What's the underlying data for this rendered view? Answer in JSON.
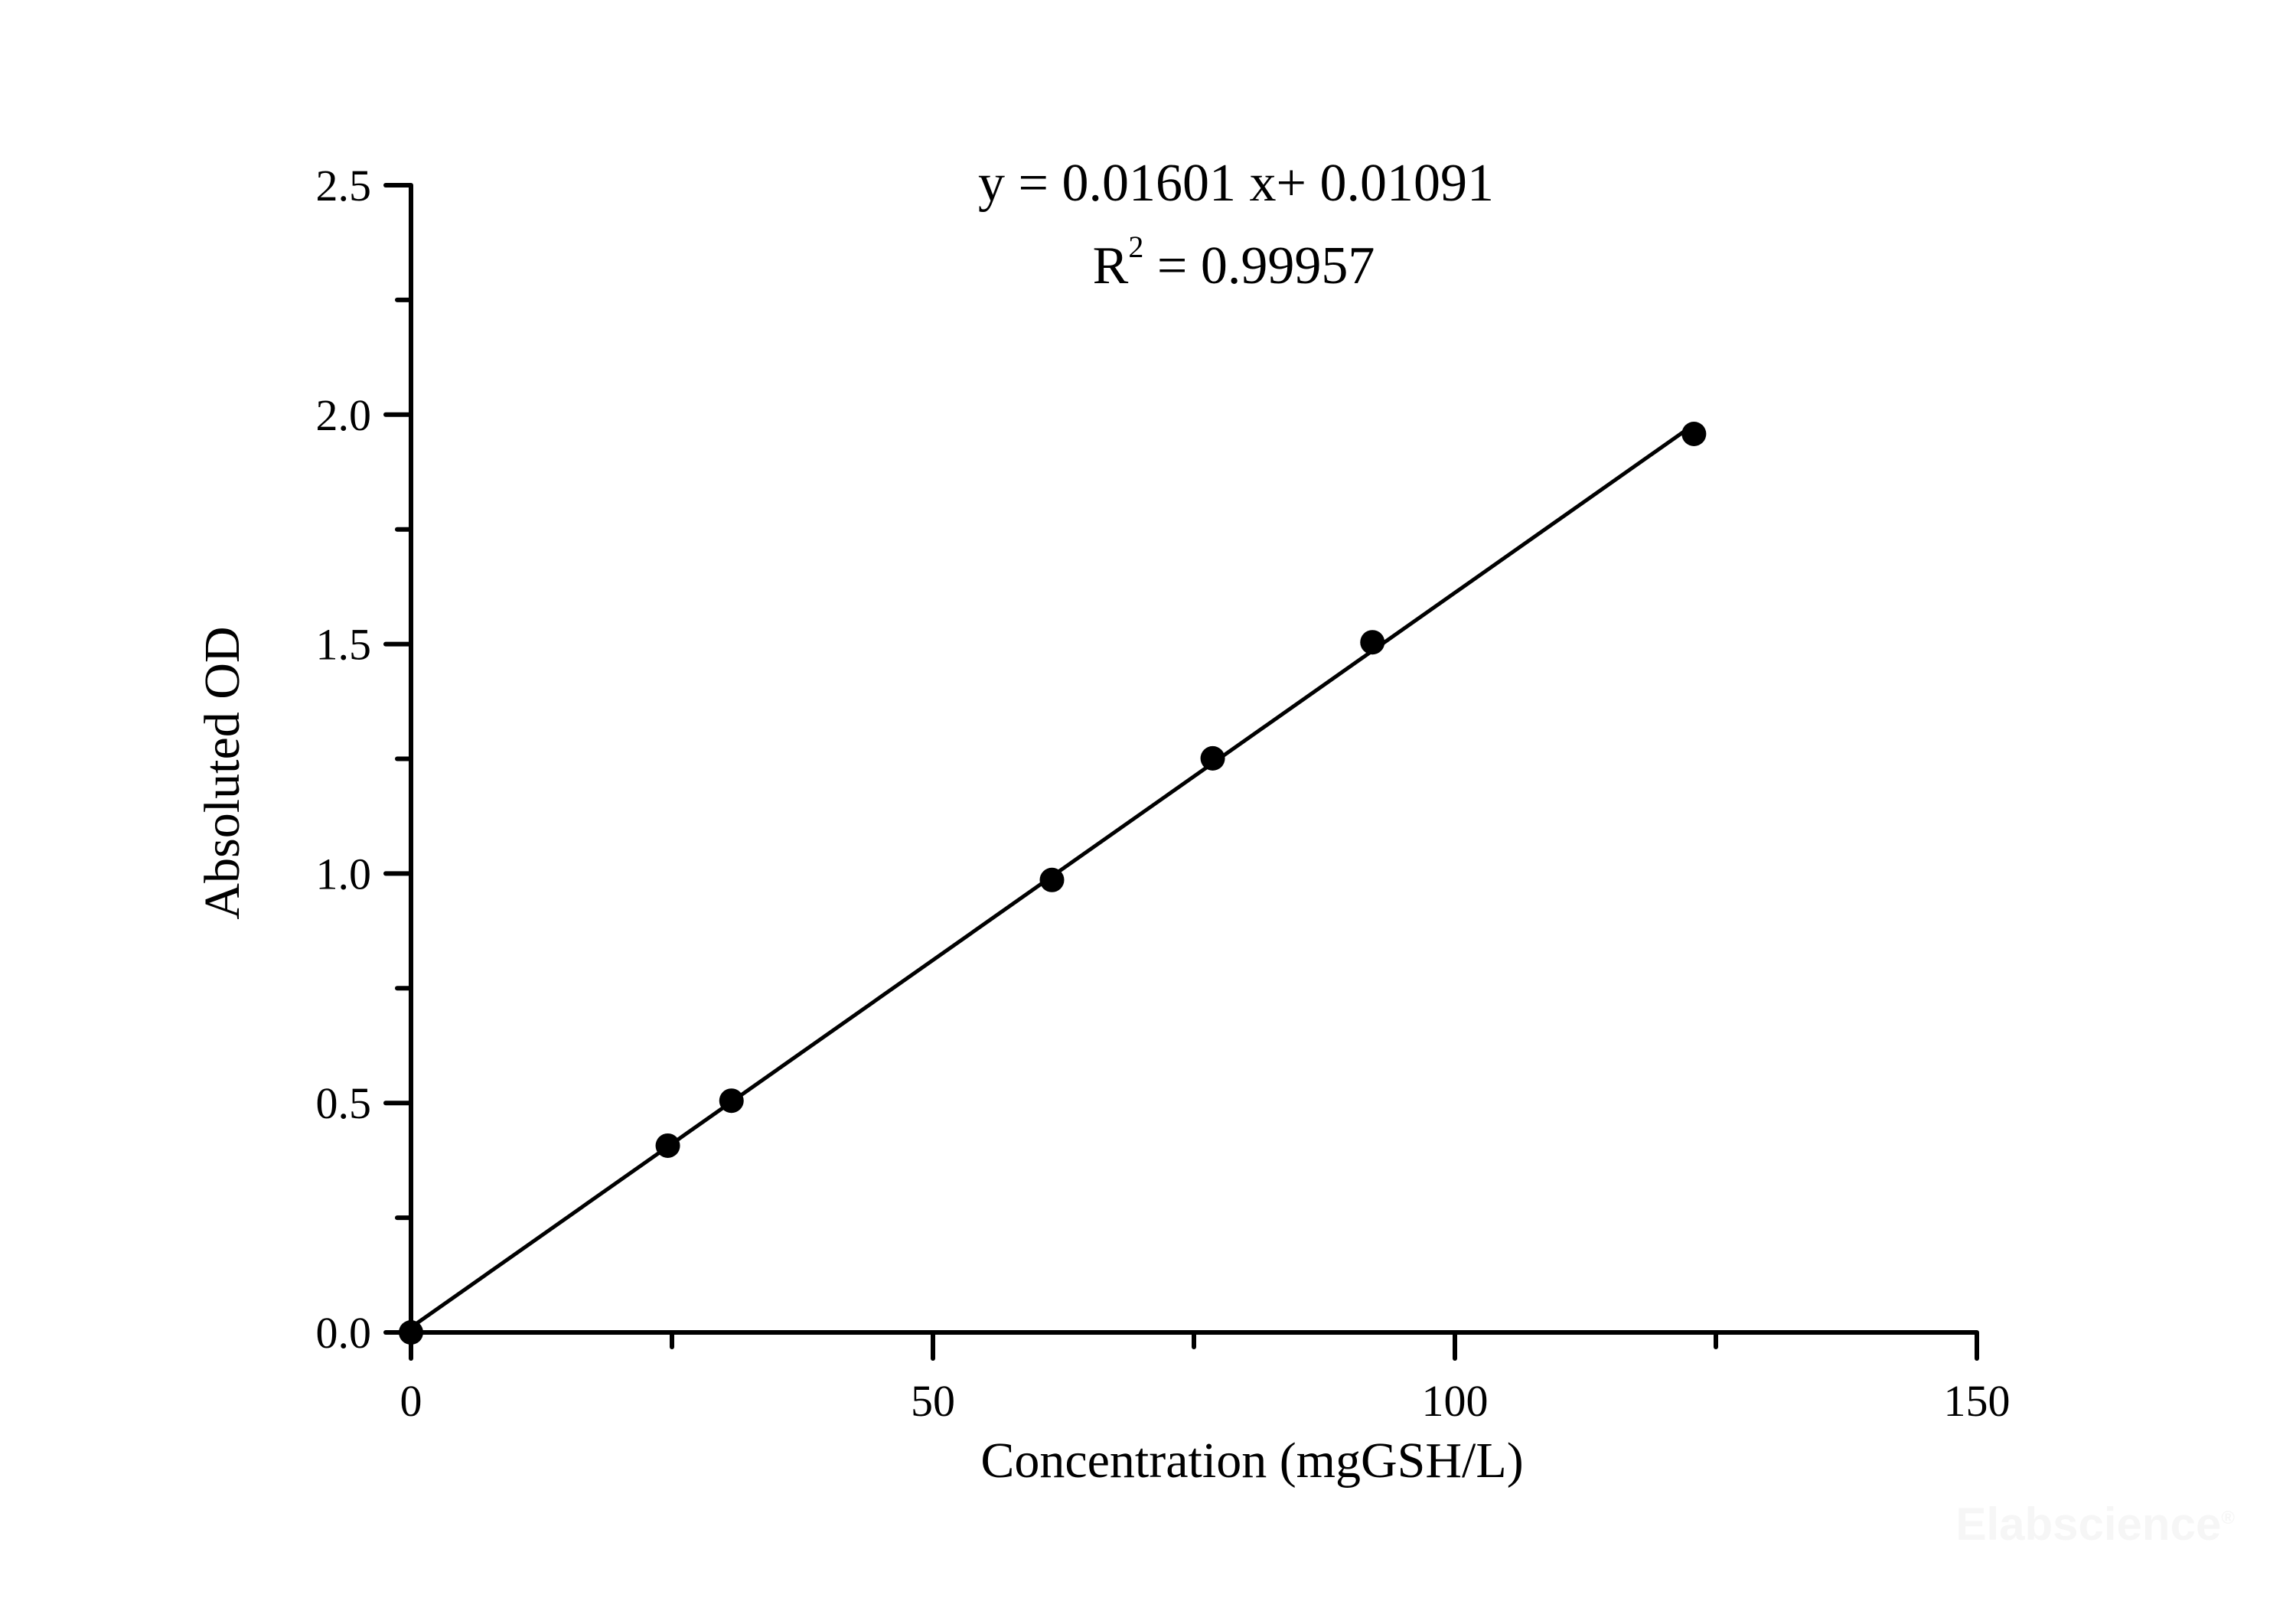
{
  "chart_data": {
    "type": "scatter",
    "title": "",
    "xlabel": "Concentration (mgGSH/L)",
    "ylabel": "Absoluted OD",
    "xlim": [
      0,
      150
    ],
    "ylim": [
      0,
      2.5
    ],
    "x_ticks": [
      0,
      50,
      100,
      150
    ],
    "x_tick_labels": [
      "0",
      "50",
      "100",
      "150"
    ],
    "x_minor_ticks": [
      25,
      75,
      125
    ],
    "y_ticks": [
      0.0,
      0.5,
      1.0,
      1.5,
      2.0,
      2.5
    ],
    "y_tick_labels": [
      "0.0",
      "0.5",
      "1.0",
      "1.5",
      "2.0",
      "2.5"
    ],
    "y_minor_ticks": [
      0.25,
      0.75,
      1.25,
      1.75,
      2.25
    ],
    "grid": false,
    "legend": null,
    "series": [
      {
        "name": "Standard points",
        "marker": "filled-circle",
        "color": "#000000",
        "x": [
          0,
          24.6,
          30.7,
          61.4,
          76.8,
          92.1,
          122.9
        ],
        "y": [
          0.0,
          0.407,
          0.505,
          0.986,
          1.251,
          1.504,
          1.958
        ]
      },
      {
        "name": "Linear fit",
        "type": "line",
        "color": "#000000",
        "slope": 0.01601,
        "intercept": 0.01091,
        "x_range": [
          0,
          122.9
        ]
      }
    ],
    "annotations": [
      "y = 0.01601 x+ 0.01091",
      "R2 = 0.99957"
    ]
  },
  "equation": {
    "line1": "y = 0.01601 x+ 0.01091",
    "r_label": "R",
    "r_sup": "2",
    "r_value": " = 0.99957"
  },
  "watermark": "Elabscience",
  "watermark_mark": "®"
}
